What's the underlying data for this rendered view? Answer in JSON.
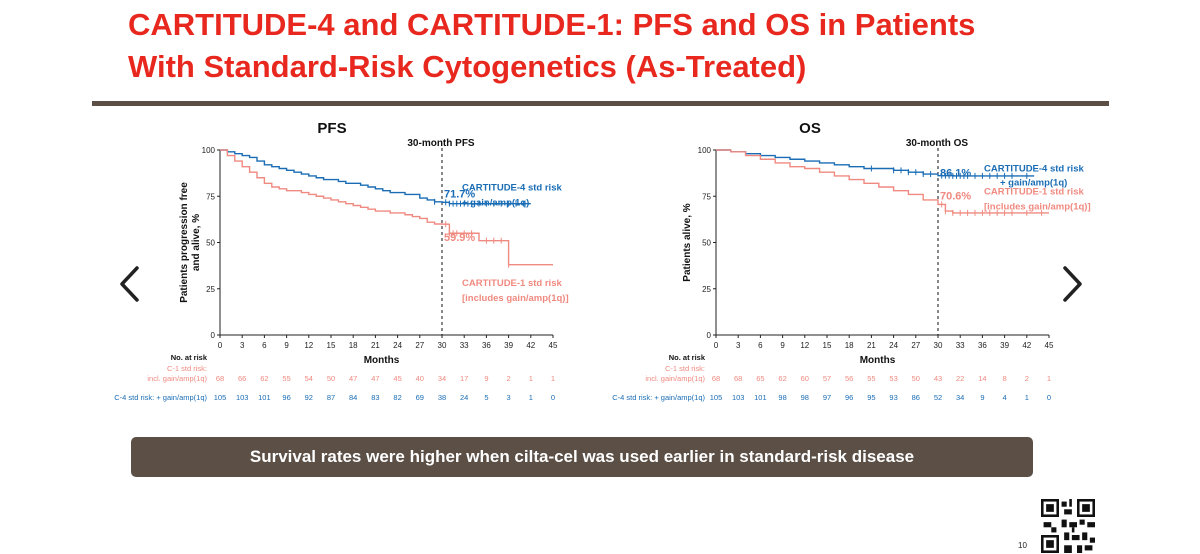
{
  "slide": {
    "title_line1": "CARTITUDE-4 and CARTITUDE-1: PFS and OS in Patients",
    "title_line2": "With Standard-Risk Cytogenetics (As-Treated)",
    "banner": "Survival rates were higher when cilta-cel was used earlier in standard-risk disease",
    "page_number": "10",
    "colors": {
      "title": "#e8281e",
      "c4": "#1a6db5",
      "c1": "#f08a80",
      "banner_bg": "#5b4f46"
    }
  },
  "nav": {
    "prev": "chevron-left-icon",
    "next": "chevron-right-icon"
  },
  "chart_data": [
    {
      "type": "line",
      "title": "PFS",
      "annotation": "30-month PFS",
      "xlabel": "Months",
      "ylabel": [
        "Patients progression free",
        "and alive, %"
      ],
      "xlim": [
        0,
        45
      ],
      "ylim": [
        0,
        100
      ],
      "xticks": [
        0,
        3,
        6,
        9,
        12,
        15,
        18,
        21,
        24,
        27,
        30,
        33,
        36,
        39,
        42,
        45
      ],
      "yticks": [
        0,
        25,
        50,
        75,
        100
      ],
      "marker_x": 30,
      "series": [
        {
          "name": "CARTITUDE-4 std risk + gain/amp(1q)",
          "color": "#1a6db5",
          "label_lines": [
            "CARTITUDE-4 std risk",
            "+ gain/amp(1q)"
          ],
          "value_label": "71.7%",
          "x": [
            0,
            1,
            2,
            3,
            4,
            5,
            6,
            7,
            8,
            9,
            10,
            11,
            12,
            13,
            14,
            15,
            16,
            17,
            18,
            19,
            20,
            21,
            22,
            23,
            24,
            25,
            26,
            27,
            28,
            29,
            30,
            31,
            32,
            33,
            34,
            35,
            36,
            37,
            38,
            39,
            40,
            41,
            42
          ],
          "y": [
            100,
            99,
            98,
            97,
            96,
            94,
            92,
            91,
            90,
            89,
            88,
            87,
            86,
            85,
            84,
            84,
            83,
            82,
            82,
            81,
            80,
            79,
            78,
            77,
            77,
            76,
            76,
            74,
            73,
            72,
            71.7,
            71,
            71,
            71,
            71,
            71,
            71,
            71,
            71,
            71,
            71,
            71,
            71
          ],
          "censor_x": [
            29,
            30.5,
            31,
            31.5,
            32,
            32.5,
            33,
            33.5,
            34,
            35,
            36,
            37,
            38,
            39,
            40,
            41
          ]
        },
        {
          "name": "CARTITUDE-1 std risk [includes gain/amp(1q)]",
          "color": "#f08a80",
          "label_lines": [
            "CARTITUDE-1 std risk",
            "[includes gain/amp(1q)]"
          ],
          "value_label": "59.9%",
          "x": [
            0,
            1,
            2,
            3,
            4,
            5,
            6,
            7,
            8,
            9,
            10,
            11,
            12,
            13,
            14,
            15,
            16,
            17,
            18,
            19,
            20,
            21,
            22,
            23,
            24,
            25,
            26,
            27,
            28,
            29,
            30,
            31,
            32,
            33,
            34,
            35,
            36,
            37,
            38,
            39,
            40,
            41,
            42,
            43,
            44,
            45
          ],
          "y": [
            100,
            97,
            94,
            91,
            88,
            85,
            82,
            80,
            79,
            78,
            78,
            77,
            76,
            75,
            74,
            73,
            72,
            71,
            70,
            69,
            68,
            67,
            67,
            66,
            66,
            65,
            64,
            63,
            61,
            60,
            59.9,
            55,
            55,
            55,
            55,
            51,
            51,
            51,
            51,
            38,
            38,
            38,
            38,
            38,
            38,
            38
          ],
          "censor_x": [
            30.5,
            31,
            31.5,
            32,
            33,
            34,
            36,
            37,
            38,
            39
          ]
        }
      ],
      "at_risk": {
        "header": "No. at risk",
        "c1_label_lines": [
          "C-1 std risk:",
          "incl. gain/amp(1q)"
        ],
        "c4_label": "C-4 std risk: + gain/amp(1q)",
        "c1": [
          "68",
          "66",
          "62",
          "55",
          "54",
          "50",
          "47",
          "47",
          "45",
          "40",
          "34",
          "17",
          "9",
          "2",
          "1",
          "1"
        ],
        "c4": [
          "105",
          "103",
          "101",
          "96",
          "92",
          "87",
          "84",
          "83",
          "82",
          "69",
          "38",
          "24",
          "5",
          "3",
          "1",
          "0"
        ]
      }
    },
    {
      "type": "line",
      "title": "OS",
      "annotation": "30-month OS",
      "xlabel": "Months",
      "ylabel": [
        "Patients alive, %"
      ],
      "xlim": [
        0,
        45
      ],
      "ylim": [
        0,
        100
      ],
      "xticks": [
        0,
        3,
        6,
        9,
        12,
        15,
        18,
        21,
        24,
        27,
        30,
        33,
        36,
        39,
        42,
        45
      ],
      "yticks": [
        0,
        25,
        50,
        75,
        100
      ],
      "marker_x": 30,
      "series": [
        {
          "name": "CARTITUDE-4 std risk + gain/amp(1q)",
          "color": "#1a6db5",
          "label_lines": [
            "CARTITUDE-4 std risk",
            "+ gain/amp(1q)"
          ],
          "value_label": "86.1%",
          "x": [
            0,
            2,
            4,
            6,
            8,
            10,
            12,
            14,
            16,
            18,
            20,
            22,
            24,
            26,
            28,
            30,
            32,
            34,
            36,
            38,
            40,
            42,
            43
          ],
          "y": [
            100,
            99,
            98,
            97,
            96,
            95,
            94,
            93,
            92,
            91,
            90,
            90,
            89,
            88,
            87,
            86.1,
            86,
            86,
            86,
            86,
            86,
            86,
            86
          ],
          "censor_x": [
            21,
            24,
            25,
            26,
            27,
            28,
            29,
            30.5,
            31,
            31.5,
            32,
            32.5,
            33,
            33.5,
            34,
            35,
            36,
            37,
            38,
            39,
            40,
            42
          ]
        },
        {
          "name": "CARTITUDE-1 std risk [includes gain/amp(1q)]",
          "color": "#f08a80",
          "label_lines": [
            "CARTITUDE-1 std risk",
            "[includes gain/amp(1q)]"
          ],
          "value_label": "70.6%",
          "x": [
            0,
            2,
            4,
            6,
            8,
            10,
            12,
            14,
            16,
            18,
            20,
            22,
            24,
            26,
            28,
            30,
            31,
            32,
            34,
            36,
            38,
            40,
            42,
            44,
            45
          ],
          "y": [
            100,
            99,
            97,
            95,
            93,
            91,
            90,
            88,
            86,
            84,
            82,
            80,
            78,
            76,
            73,
            70.6,
            67,
            66,
            66,
            66,
            66,
            66,
            66,
            66,
            66
          ],
          "censor_x": [
            30.5,
            31,
            32,
            33,
            34,
            35,
            36,
            37,
            38,
            39,
            40,
            42,
            44
          ]
        }
      ],
      "at_risk": {
        "header": "No. at risk",
        "c1_label_lines": [
          "C-1 std risk:",
          "incl. gain/amp(1q)"
        ],
        "c4_label": "C-4 std risk: + gain/amp(1q)",
        "c1": [
          "68",
          "68",
          "65",
          "62",
          "60",
          "57",
          "56",
          "55",
          "53",
          "50",
          "43",
          "22",
          "14",
          "8",
          "2",
          "1"
        ],
        "c4": [
          "105",
          "103",
          "101",
          "98",
          "98",
          "97",
          "96",
          "95",
          "93",
          "86",
          "52",
          "34",
          "9",
          "4",
          "1",
          "0"
        ]
      }
    }
  ]
}
